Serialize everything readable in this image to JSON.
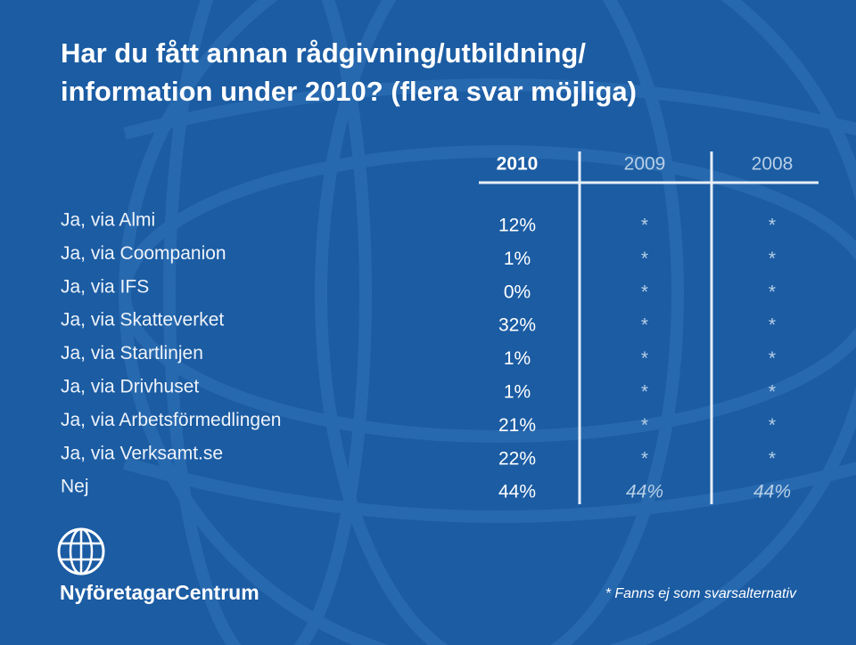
{
  "title_lines": [
    "Har du fått annan rådgivning/utbildning/",
    "information under 2010? (flera svar möjliga)"
  ],
  "table": {
    "columns": [
      "2010",
      "2009",
      "2008"
    ],
    "rows": [
      [
        "Ja, via Almi",
        "12%",
        "*",
        "*"
      ],
      [
        "Ja, via Coompanion",
        "1%",
        "*",
        "*"
      ],
      [
        "Ja, via IFS",
        "0%",
        "*",
        "*"
      ],
      [
        "Ja, via Skatteverket",
        "32%",
        "*",
        "*"
      ],
      [
        "Ja, via Startlinjen",
        "1%",
        "*",
        "*"
      ],
      [
        "Ja, via Drivhuset",
        "1%",
        "*",
        "*"
      ],
      [
        "Ja, via Arbetsförmedlingen",
        "21%",
        "*",
        "*"
      ],
      [
        "Ja, via Verksamt.se",
        "22%",
        "*",
        "*"
      ],
      [
        "Nej",
        "44%",
        "44%",
        "44%"
      ]
    ]
  },
  "footnote": "* Fanns ej som svarsalternativ",
  "logo_text": "NyföretagarCentrum"
}
